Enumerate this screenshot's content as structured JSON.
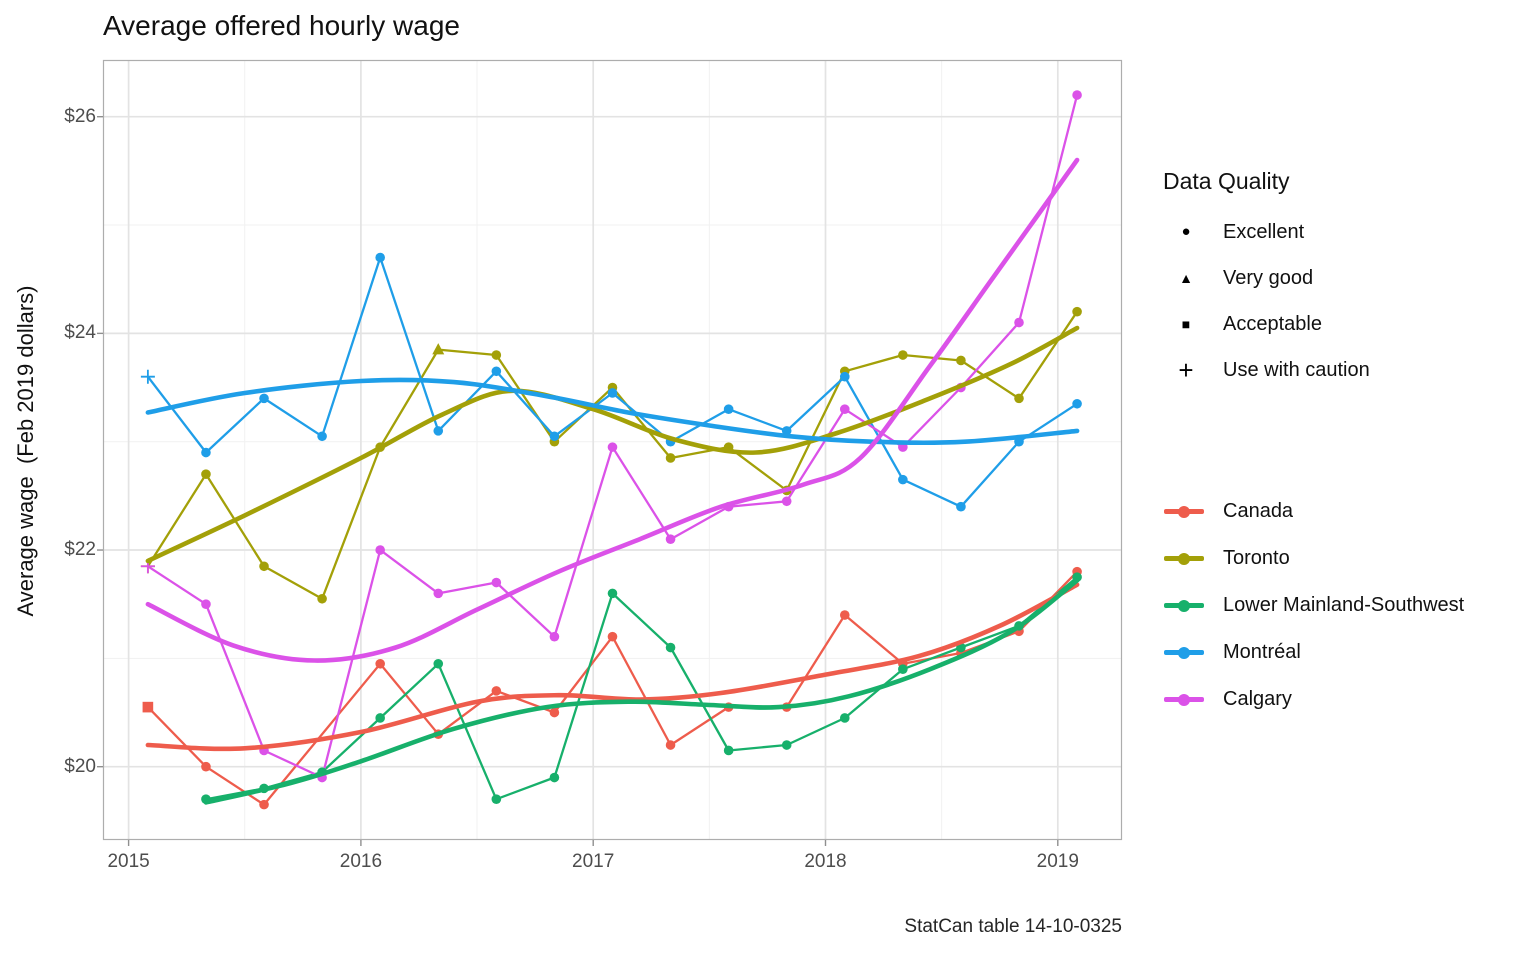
{
  "title": "Average offered hourly wage",
  "y_axis_label": "Average wage  (Feb 2019 dollars)",
  "caption": "StatCan table 14-10-0325",
  "legend_quality": {
    "title": "Data Quality",
    "items": [
      {
        "shape": "circle",
        "glyph": "●",
        "label": "Excellent"
      },
      {
        "shape": "triangle",
        "glyph": "▲",
        "label": "Very good"
      },
      {
        "shape": "square",
        "glyph": "■",
        "label": "Acceptable"
      },
      {
        "shape": "plus",
        "glyph": "+",
        "label": "Use with caution"
      }
    ]
  },
  "chart_data": {
    "type": "line",
    "title": "Average offered hourly wage",
    "xlabel": "",
    "ylabel": "Average wage  (Feb 2019 dollars)",
    "caption": "StatCan table 14-10-0325",
    "xlim": [
      2014.89,
      2019.275
    ],
    "ylim": [
      19.32,
      26.52
    ],
    "grid": "on",
    "legend_position": "right",
    "x_ticks": [
      {
        "v": 2015,
        "label": "2015"
      },
      {
        "v": 2016,
        "label": "2016"
      },
      {
        "v": 2017,
        "label": "2017"
      },
      {
        "v": 2018,
        "label": "2018"
      },
      {
        "v": 2019,
        "label": "2019"
      }
    ],
    "x_minor": [
      2015.5,
      2016.5,
      2017.5,
      2018.5
    ],
    "y_ticks": [
      {
        "v": 20,
        "label": "$20"
      },
      {
        "v": 22,
        "label": "$22"
      },
      {
        "v": 24,
        "label": "$24"
      },
      {
        "v": 26,
        "label": "$26"
      }
    ],
    "y_minor": [
      21,
      23,
      25
    ],
    "marker_quality_map": {
      "circle": "Excellent",
      "triangle": "Very good",
      "square": "Acceptable",
      "plus": "Use with caution"
    },
    "series": [
      {
        "name": "Canada",
        "color": "#EE5C4C",
        "points": [
          [
            2015.083,
            20.55,
            "square"
          ],
          [
            2015.333,
            20.0
          ],
          [
            2015.583,
            19.65
          ],
          [
            2016.083,
            20.95
          ],
          [
            2016.333,
            20.3
          ],
          [
            2016.583,
            20.7
          ],
          [
            2016.833,
            20.5
          ],
          [
            2017.083,
            21.2
          ],
          [
            2017.333,
            20.2
          ],
          [
            2017.583,
            20.55
          ],
          [
            2017.833,
            20.55
          ],
          [
            2018.083,
            21.4
          ],
          [
            2018.333,
            20.95
          ],
          [
            2018.583,
            21.05
          ],
          [
            2018.833,
            21.25
          ],
          [
            2019.083,
            21.8
          ]
        ],
        "smooth": [
          [
            2015.083,
            20.2
          ],
          [
            2015.5,
            20.17
          ],
          [
            2016.0,
            20.32
          ],
          [
            2016.5,
            20.6
          ],
          [
            2016.85,
            20.66
          ],
          [
            2017.2,
            20.62
          ],
          [
            2017.55,
            20.68
          ],
          [
            2018.0,
            20.85
          ],
          [
            2018.4,
            21.02
          ],
          [
            2018.75,
            21.3
          ],
          [
            2019.083,
            21.68
          ]
        ]
      },
      {
        "name": "Toronto",
        "color": "#A3A008",
        "points": [
          [
            2015.083,
            21.85,
            "plus"
          ],
          [
            2015.333,
            22.7
          ],
          [
            2015.583,
            21.85
          ],
          [
            2015.833,
            21.55
          ],
          [
            2016.083,
            22.95
          ],
          [
            2016.333,
            23.85,
            "triangle"
          ],
          [
            2016.583,
            23.8
          ],
          [
            2016.833,
            23.0
          ],
          [
            2017.083,
            23.5
          ],
          [
            2017.333,
            22.85
          ],
          [
            2017.583,
            22.95
          ],
          [
            2017.833,
            22.55
          ],
          [
            2018.083,
            23.65
          ],
          [
            2018.333,
            23.8
          ],
          [
            2018.583,
            23.75
          ],
          [
            2018.833,
            23.4
          ],
          [
            2019.083,
            24.2
          ]
        ],
        "smooth": [
          [
            2015.083,
            21.9
          ],
          [
            2015.5,
            22.32
          ],
          [
            2016.0,
            22.85
          ],
          [
            2016.35,
            23.25
          ],
          [
            2016.65,
            23.47
          ],
          [
            2017.0,
            23.3
          ],
          [
            2017.35,
            23.02
          ],
          [
            2017.7,
            22.9
          ],
          [
            2018.05,
            23.08
          ],
          [
            2018.45,
            23.4
          ],
          [
            2018.8,
            23.72
          ],
          [
            2019.083,
            24.05
          ]
        ]
      },
      {
        "name": "Lower Mainland-Southwest",
        "color": "#17B06B",
        "points": [
          [
            2015.333,
            19.7
          ],
          [
            2015.583,
            19.8
          ],
          [
            2015.833,
            19.95
          ],
          [
            2016.083,
            20.45
          ],
          [
            2016.333,
            20.95
          ],
          [
            2016.583,
            19.7
          ],
          [
            2016.833,
            19.9
          ],
          [
            2017.083,
            21.6
          ],
          [
            2017.333,
            21.1
          ],
          [
            2017.583,
            20.15
          ],
          [
            2017.833,
            20.2
          ],
          [
            2018.083,
            20.45
          ],
          [
            2018.333,
            20.9
          ],
          [
            2018.583,
            21.1
          ],
          [
            2018.833,
            21.3
          ],
          [
            2019.083,
            21.75
          ]
        ],
        "smooth": [
          [
            2015.333,
            19.67
          ],
          [
            2015.7,
            19.85
          ],
          [
            2016.0,
            20.05
          ],
          [
            2016.4,
            20.35
          ],
          [
            2016.8,
            20.55
          ],
          [
            2017.15,
            20.6
          ],
          [
            2017.5,
            20.57
          ],
          [
            2017.8,
            20.55
          ],
          [
            2018.1,
            20.65
          ],
          [
            2018.45,
            20.9
          ],
          [
            2018.8,
            21.25
          ],
          [
            2019.083,
            21.72
          ]
        ]
      },
      {
        "name": "Montréal",
        "color": "#1F9EE8",
        "points": [
          [
            2015.083,
            23.6,
            "plus"
          ],
          [
            2015.333,
            22.9
          ],
          [
            2015.583,
            23.4
          ],
          [
            2015.833,
            23.05
          ],
          [
            2016.083,
            24.7
          ],
          [
            2016.333,
            23.1
          ],
          [
            2016.583,
            23.65
          ],
          [
            2016.833,
            23.05
          ],
          [
            2017.083,
            23.45
          ],
          [
            2017.333,
            23.0
          ],
          [
            2017.583,
            23.3
          ],
          [
            2017.833,
            23.1
          ],
          [
            2018.083,
            23.6
          ],
          [
            2018.333,
            22.65
          ],
          [
            2018.583,
            22.4
          ],
          [
            2018.833,
            23.0
          ],
          [
            2019.083,
            23.35
          ]
        ],
        "smooth": [
          [
            2015.083,
            23.27
          ],
          [
            2015.5,
            23.45
          ],
          [
            2016.0,
            23.56
          ],
          [
            2016.4,
            23.55
          ],
          [
            2016.8,
            23.42
          ],
          [
            2017.15,
            23.27
          ],
          [
            2017.5,
            23.15
          ],
          [
            2017.85,
            23.05
          ],
          [
            2018.2,
            23.0
          ],
          [
            2018.6,
            23.0
          ],
          [
            2019.083,
            23.1
          ]
        ]
      },
      {
        "name": "Calgary",
        "color": "#DB52E8",
        "points": [
          [
            2015.083,
            21.85,
            "plus"
          ],
          [
            2015.333,
            21.5
          ],
          [
            2015.583,
            20.15
          ],
          [
            2015.833,
            19.9
          ],
          [
            2016.083,
            22.0
          ],
          [
            2016.333,
            21.6
          ],
          [
            2016.583,
            21.7
          ],
          [
            2016.833,
            21.2
          ],
          [
            2017.083,
            22.95
          ],
          [
            2017.333,
            22.1
          ],
          [
            2017.583,
            22.4
          ],
          [
            2017.833,
            22.45
          ],
          [
            2018.083,
            23.3
          ],
          [
            2018.333,
            22.95
          ],
          [
            2018.583,
            23.5
          ],
          [
            2018.833,
            24.1
          ],
          [
            2019.083,
            26.2
          ]
        ],
        "smooth": [
          [
            2015.083,
            21.5
          ],
          [
            2015.45,
            21.12
          ],
          [
            2015.8,
            20.98
          ],
          [
            2016.15,
            21.1
          ],
          [
            2016.5,
            21.45
          ],
          [
            2016.85,
            21.8
          ],
          [
            2017.2,
            22.1
          ],
          [
            2017.55,
            22.4
          ],
          [
            2017.9,
            22.6
          ],
          [
            2018.15,
            22.85
          ],
          [
            2018.45,
            23.7
          ],
          [
            2018.7,
            24.45
          ],
          [
            2018.9,
            25.05
          ],
          [
            2019.083,
            25.6
          ]
        ]
      }
    ],
    "style": {
      "grid_major_color": "#E3E3E3",
      "grid_minor_color": "#F1F1F1",
      "panel_border_color": "#ADADAD",
      "tick_color": "#8F8F8F",
      "tick_label_color": "#4D4D4D"
    }
  }
}
